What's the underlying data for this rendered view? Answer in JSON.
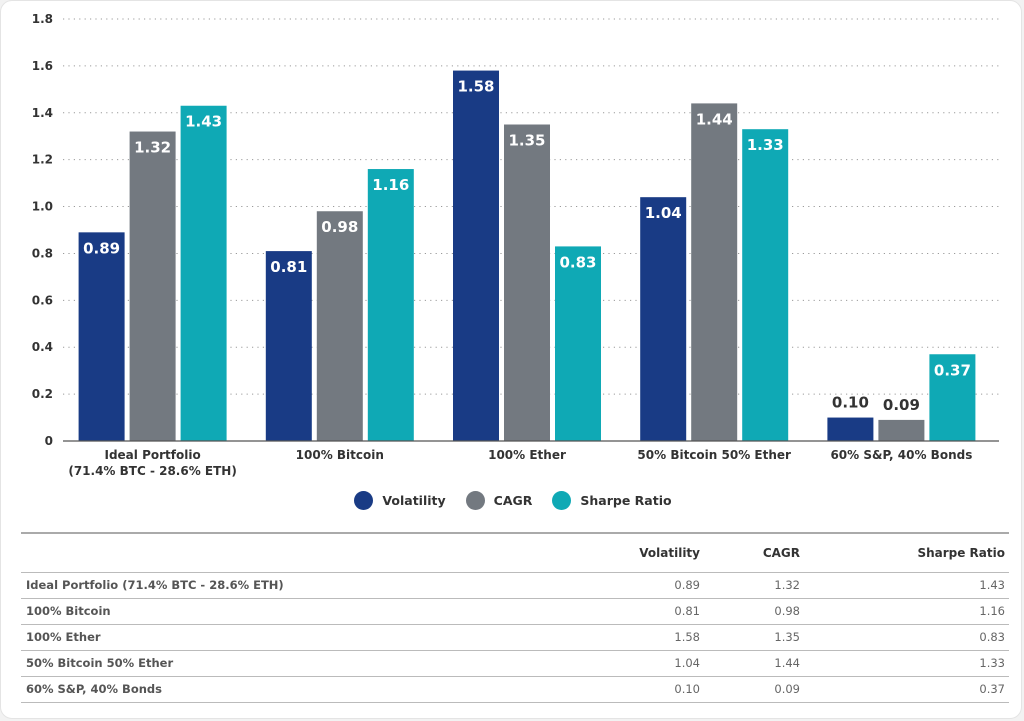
{
  "chart_data": {
    "type": "bar",
    "title": "",
    "xlabel": "",
    "ylabel": "",
    "ylim": [
      0,
      1.8
    ],
    "yticks": [
      "0",
      "0.2",
      "0.4",
      "0.6",
      "0.8",
      "1.0",
      "1.2",
      "1.4",
      "1.6",
      "1.8"
    ],
    "ytick_values": [
      0,
      0.2,
      0.4,
      0.6,
      0.8,
      1.0,
      1.2,
      1.4,
      1.6,
      1.8
    ],
    "grid": "horizontal-dotted",
    "legend_position": "bottom-center",
    "categories": [
      [
        "Ideal Portfolio",
        "(71.4% BTC - 28.6% ETH)"
      ],
      [
        "100% Bitcoin"
      ],
      [
        "100% Ether"
      ],
      [
        "50% Bitcoin 50% Ether"
      ],
      [
        "60% S&P, 40% Bonds"
      ]
    ],
    "series": [
      {
        "name": "Volatility",
        "color": "#193b85",
        "values": [
          0.89,
          0.81,
          1.58,
          1.04,
          0.1
        ],
        "labels": [
          "0.89",
          "0.81",
          "1.58",
          "1.04",
          "0.10"
        ]
      },
      {
        "name": "CAGR",
        "color": "#737980",
        "values": [
          1.32,
          0.98,
          1.35,
          1.44,
          0.09
        ],
        "labels": [
          "1.32",
          "0.98",
          "1.35",
          "1.44",
          "0.09"
        ]
      },
      {
        "name": "Sharpe Ratio",
        "color": "#0fa9b5",
        "values": [
          1.43,
          1.16,
          0.83,
          1.33,
          0.37
        ],
        "labels": [
          "1.43",
          "1.16",
          "0.83",
          "1.33",
          "0.37"
        ]
      }
    ]
  },
  "legend": [
    {
      "label": "Volatility",
      "color": "#193b85"
    },
    {
      "label": "CAGR",
      "color": "#737980"
    },
    {
      "label": "Sharpe Ratio",
      "color": "#0fa9b5"
    }
  ],
  "table": {
    "headers": [
      "",
      "Volatility",
      "CAGR",
      "Sharpe Ratio"
    ],
    "rows": [
      [
        "Ideal Portfolio (71.4% BTC - 28.6% ETH)",
        "0.89",
        "1.32",
        "1.43"
      ],
      [
        "100% Bitcoin",
        "0.81",
        "0.98",
        "1.16"
      ],
      [
        "100% Ether",
        "1.58",
        "1.35",
        "0.83"
      ],
      [
        "50% Bitcoin 50% Ether",
        "1.04",
        "1.44",
        "1.33"
      ],
      [
        "60% S&P, 40% Bonds",
        "0.10",
        "0.09",
        "0.37"
      ]
    ]
  }
}
